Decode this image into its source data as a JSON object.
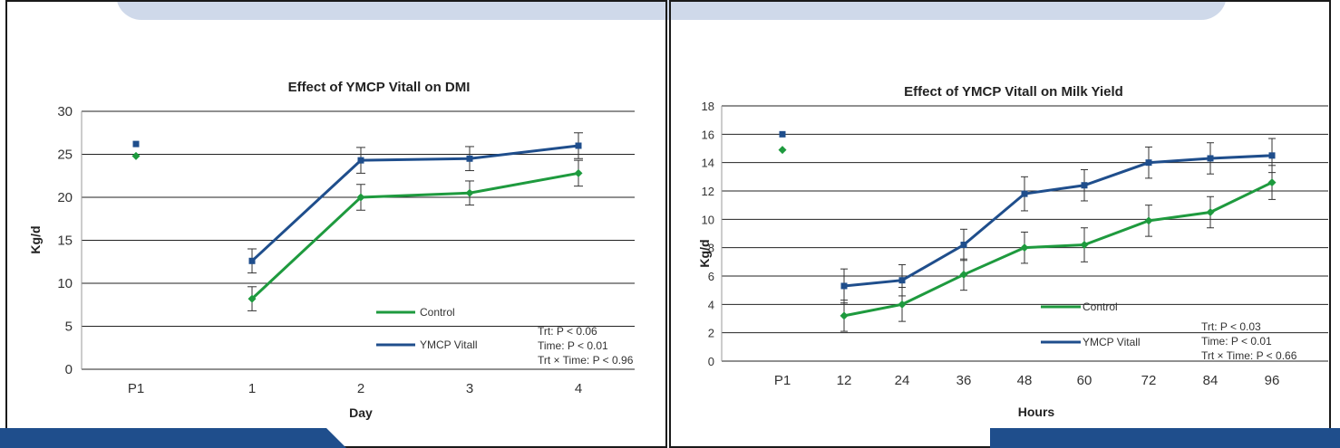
{
  "chart_data": [
    {
      "type": "line",
      "title": "Effect of YMCP Vitall on DMI",
      "xlabel": "Day",
      "ylabel": "Kg/d",
      "categories": [
        "P1",
        "1",
        "2",
        "3",
        "4"
      ],
      "ylim": [
        0,
        30
      ],
      "yticks": [
        0,
        5,
        10,
        15,
        20,
        25,
        30
      ],
      "grid": true,
      "series": [
        {
          "name": "Control",
          "color": "#1e9a3e",
          "marker": "diamond",
          "values": [
            24.8,
            8.2,
            20.0,
            20.5,
            22.8
          ],
          "errors": [
            null,
            1.4,
            1.5,
            1.4,
            1.5
          ]
        },
        {
          "name": "YMCP Vitall",
          "color": "#1f4e8c",
          "marker": "square",
          "values": [
            26.2,
            12.6,
            24.3,
            24.5,
            26.0
          ],
          "errors": [
            null,
            1.4,
            1.5,
            1.4,
            1.5
          ]
        }
      ],
      "stats": [
        "Trt: P < 0.06",
        "Time: P < 0.01",
        "Trt × Time: P < 0.96"
      ]
    },
    {
      "type": "line",
      "title": "Effect of YMCP Vitall on Milk Yield",
      "xlabel": "Hours",
      "ylabel": "Kg/d",
      "categories": [
        "P1",
        "12",
        "24",
        "36",
        "48",
        "60",
        "72",
        "84",
        "96"
      ],
      "ylim": [
        0,
        18
      ],
      "yticks": [
        0,
        2,
        4,
        6,
        8,
        10,
        12,
        14,
        16,
        18
      ],
      "grid": true,
      "series": [
        {
          "name": "Control",
          "color": "#1e9a3e",
          "marker": "diamond",
          "values": [
            14.9,
            3.2,
            4.0,
            6.1,
            8.0,
            8.2,
            9.9,
            10.5,
            12.6
          ],
          "errors": [
            null,
            1.1,
            1.2,
            1.1,
            1.1,
            1.2,
            1.1,
            1.1,
            1.2
          ]
        },
        {
          "name": "YMCP Vitall",
          "color": "#1f4e8c",
          "marker": "square",
          "values": [
            16.0,
            5.3,
            5.7,
            8.2,
            11.8,
            12.4,
            14.0,
            14.3,
            14.5
          ],
          "errors": [
            null,
            1.2,
            1.1,
            1.1,
            1.2,
            1.1,
            1.1,
            1.1,
            1.2
          ]
        }
      ],
      "stats": [
        "Trt: P < 0.03",
        "Time: P < 0.01",
        "Trt × Time: P < 0.66"
      ]
    }
  ]
}
